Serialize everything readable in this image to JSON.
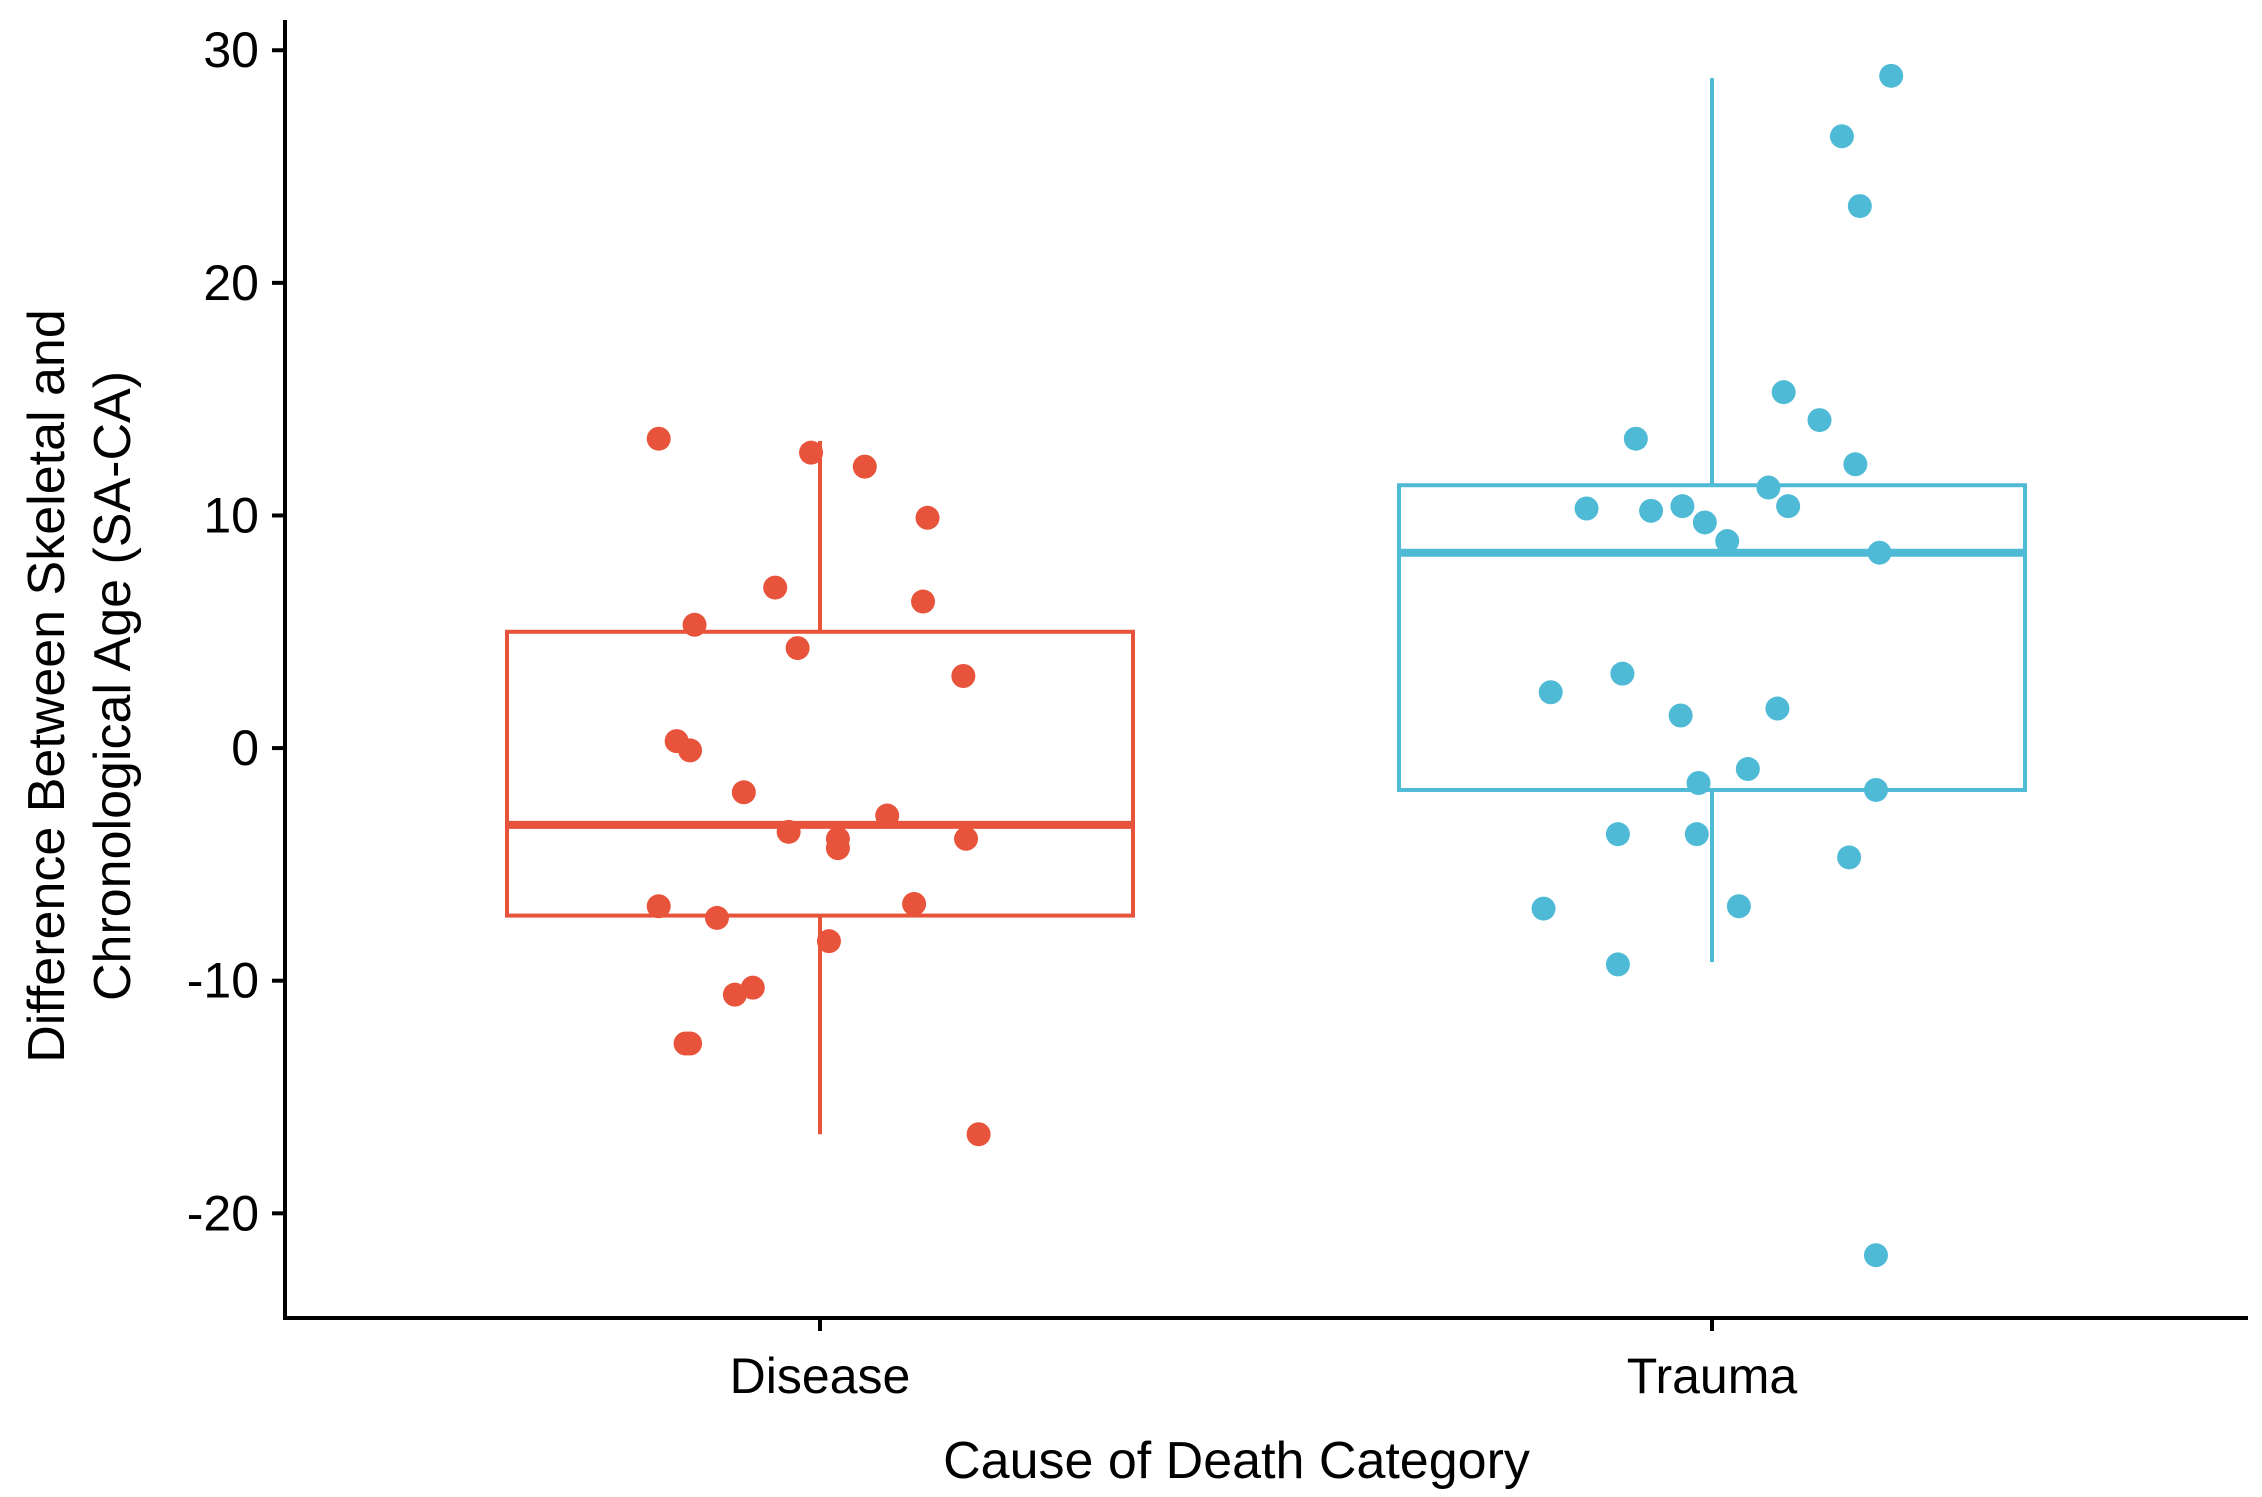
{
  "chart_data": {
    "type": "boxplot",
    "title": "",
    "xlabel": "Cause of Death Category",
    "ylabel_lines": [
      "Difference Between Skeletal and",
      "Chronological Age (SA-CA)"
    ],
    "ylim": [
      -24.5,
      31.3
    ],
    "yticks": [
      30,
      20,
      10,
      0,
      -10,
      -20
    ],
    "ytick_labels": [
      "30",
      "20",
      "10",
      "0",
      "-10",
      "-20"
    ],
    "categories": [
      "Disease",
      "Trauma"
    ],
    "series": [
      {
        "name": "Disease",
        "color": "#e8533b",
        "box": {
          "whisker_low": -16.6,
          "q1": -7.2,
          "median": -3.3,
          "q3": 5.0,
          "whisker_high": 13.2
        },
        "points": [
          {
            "dx": -0.18,
            "y": 13.3
          },
          {
            "dx": -0.01,
            "y": 12.7
          },
          {
            "dx": 0.05,
            "y": 12.1
          },
          {
            "dx": 0.12,
            "y": 9.9
          },
          {
            "dx": -0.05,
            "y": 6.9
          },
          {
            "dx": 0.115,
            "y": 6.3
          },
          {
            "dx": -0.14,
            "y": 5.3
          },
          {
            "dx": -0.025,
            "y": 4.3
          },
          {
            "dx": 0.16,
            "y": 3.1
          },
          {
            "dx": -0.16,
            "y": 0.3
          },
          {
            "dx": -0.145,
            "y": -0.1
          },
          {
            "dx": -0.085,
            "y": -1.9
          },
          {
            "dx": 0.075,
            "y": -2.9
          },
          {
            "dx": -0.035,
            "y": -3.6
          },
          {
            "dx": 0.02,
            "y": -3.9
          },
          {
            "dx": 0.163,
            "y": -3.9
          },
          {
            "dx": 0.02,
            "y": -4.3
          },
          {
            "dx": -0.18,
            "y": -6.8
          },
          {
            "dx": 0.105,
            "y": -6.7
          },
          {
            "dx": -0.115,
            "y": -7.3
          },
          {
            "dx": 0.01,
            "y": -8.3
          },
          {
            "dx": -0.075,
            "y": -10.3
          },
          {
            "dx": -0.095,
            "y": -10.6
          },
          {
            "dx": -0.15,
            "y": -12.7
          },
          {
            "dx": -0.145,
            "y": -12.7
          },
          {
            "dx": 0.177,
            "y": -16.6
          }
        ]
      },
      {
        "name": "Trauma",
        "color": "#4fbad6",
        "box": {
          "whisker_low": -9.2,
          "q1": -1.8,
          "median": 8.4,
          "q3": 11.3,
          "whisker_high": 28.8
        },
        "points": [
          {
            "dx": 0.2,
            "y": 28.9
          },
          {
            "dx": 0.145,
            "y": 26.3
          },
          {
            "dx": 0.165,
            "y": 23.3
          },
          {
            "dx": 0.08,
            "y": 15.3
          },
          {
            "dx": 0.12,
            "y": 14.1
          },
          {
            "dx": -0.085,
            "y": 13.3
          },
          {
            "dx": 0.16,
            "y": 12.2
          },
          {
            "dx": 0.063,
            "y": 11.2
          },
          {
            "dx": -0.14,
            "y": 10.3
          },
          {
            "dx": -0.068,
            "y": 10.2
          },
          {
            "dx": -0.033,
            "y": 10.4
          },
          {
            "dx": 0.085,
            "y": 10.4
          },
          {
            "dx": -0.008,
            "y": 9.7
          },
          {
            "dx": 0.017,
            "y": 8.9
          },
          {
            "dx": 0.187,
            "y": 8.4
          },
          {
            "dx": -0.1,
            "y": 3.2
          },
          {
            "dx": -0.18,
            "y": 2.4
          },
          {
            "dx": -0.035,
            "y": 1.4
          },
          {
            "dx": 0.073,
            "y": 1.7
          },
          {
            "dx": 0.04,
            "y": -0.9
          },
          {
            "dx": -0.015,
            "y": -1.5
          },
          {
            "dx": 0.183,
            "y": -1.8
          },
          {
            "dx": -0.105,
            "y": -3.7
          },
          {
            "dx": -0.017,
            "y": -3.7
          },
          {
            "dx": 0.153,
            "y": -4.7
          },
          {
            "dx": -0.188,
            "y": -6.9
          },
          {
            "dx": 0.03,
            "y": -6.8
          },
          {
            "dx": -0.105,
            "y": -9.3
          },
          {
            "dx": 0.183,
            "y": -21.8
          }
        ]
      }
    ]
  }
}
